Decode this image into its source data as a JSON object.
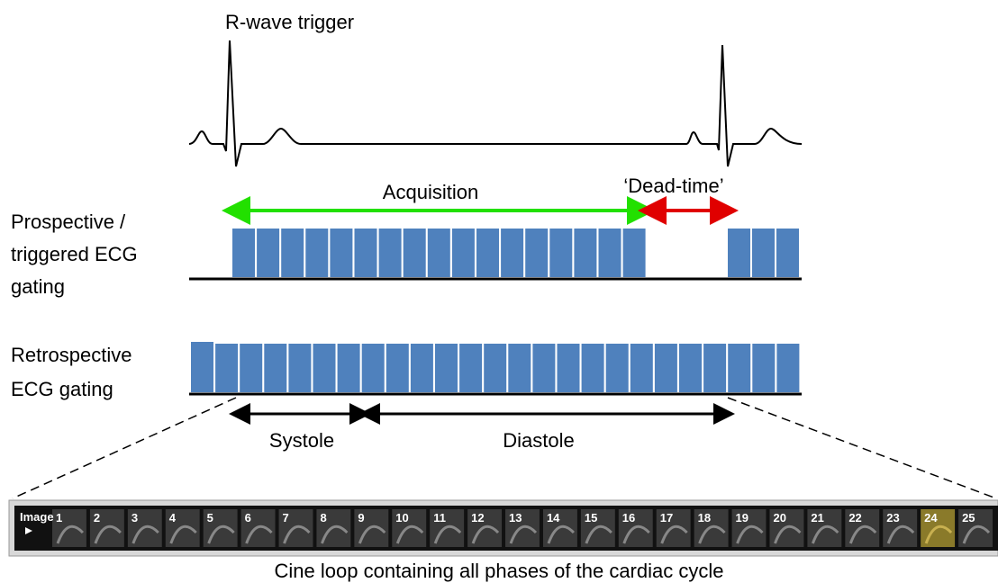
{
  "trigger_label": "R-wave trigger",
  "acquisition_label": "Acquisition",
  "dead_time_label": "‘Dead-time’",
  "prospective_label": [
    "Prospective /",
    "triggered ECG",
    "gating"
  ],
  "retrospective_label": [
    "Retrospective",
    "ECG gating"
  ],
  "systole_label": "Systole",
  "diastole_label": "Diastole",
  "filmstrip": {
    "image_label": "Image",
    "frames": [
      "1",
      "2",
      "3",
      "4",
      "5",
      "6",
      "7",
      "8",
      "9",
      "10",
      "11",
      "12",
      "13",
      "14",
      "15",
      "16",
      "17",
      "18",
      "19",
      "20",
      "21",
      "22",
      "23",
      "24",
      "25"
    ]
  },
  "caption": "Cine loop containing all phases of the cardiac cycle"
}
